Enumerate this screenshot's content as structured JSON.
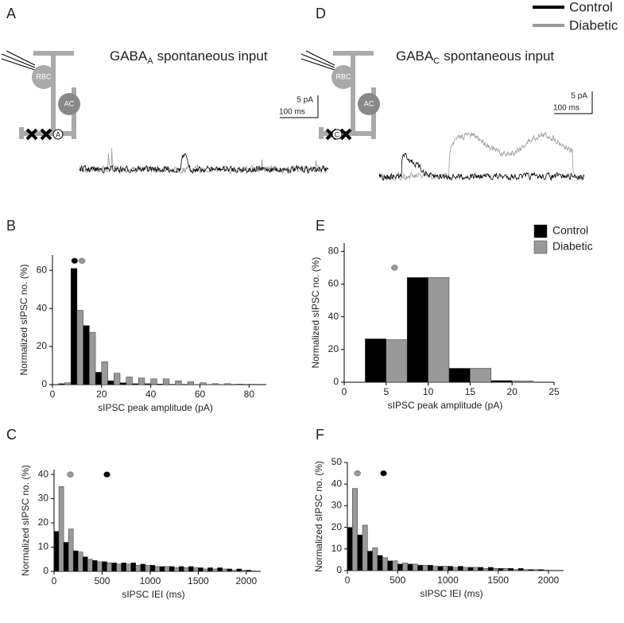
{
  "panel_letters": [
    "A",
    "B",
    "C",
    "D",
    "E",
    "F"
  ],
  "trace_panels": [
    {
      "title_main": "GABA",
      "title_sub": "A",
      "title_rest": "spontaneous input",
      "scale_current": "5 pA",
      "scale_time": "100 ms",
      "cell_labels": [
        "RBC",
        "AC"
      ],
      "receptor": "A"
    },
    {
      "title_main": "GABA",
      "title_sub": "C",
      "title_rest": "spontaneous input",
      "scale_current": "5 pA",
      "scale_time": "100 ms",
      "cell_labels": [
        "RBC",
        "AC"
      ],
      "receptor": "C"
    }
  ],
  "chart_data": [
    {
      "type": "bar",
      "xlabel": "sIPSC peak amplitude (pA)",
      "ylabel": "Normalized sIPSC no. (%)",
      "x": [
        5,
        10,
        15,
        20,
        25,
        30,
        35,
        40,
        45,
        50,
        55,
        60,
        65,
        70,
        75,
        80
      ],
      "series": [
        {
          "name": "Control",
          "color": "#000000",
          "values": [
            0.5,
            61,
            31,
            6.5,
            2,
            1,
            0.5,
            0.5,
            0.3,
            0.2,
            0.2,
            0.1,
            0.1,
            0.1,
            0,
            0
          ]
        },
        {
          "name": "Diabetic",
          "color": "#999999",
          "values": [
            1,
            39,
            27.5,
            12,
            6,
            4,
            3.5,
            3,
            3,
            2,
            1.5,
            1,
            0.5,
            0.5,
            0.3,
            0.2
          ]
        }
      ],
      "markers": [
        {
          "x": 9,
          "y": 65,
          "color": "#000000"
        },
        {
          "x": 12,
          "y": 65,
          "color": "#999999"
        }
      ],
      "xlim": [
        0,
        87
      ],
      "ylim": [
        0,
        68
      ],
      "xticks": [
        0,
        20,
        40,
        60,
        80
      ],
      "yticks": [
        0,
        20,
        40,
        60
      ]
    },
    {
      "type": "bar",
      "xlabel": "sIPSC peak amplitude (pA)",
      "ylabel": "Normalized sIPSC no. (%)",
      "x": [
        5,
        10,
        15,
        20
      ],
      "series": [
        {
          "name": "Control",
          "color": "#000000",
          "values": [
            26.5,
            64,
            8.5,
            1
          ]
        },
        {
          "name": "Diabetic",
          "color": "#999999",
          "values": [
            26,
            64,
            8.5,
            0.8
          ]
        }
      ],
      "markers": [
        {
          "x": 6,
          "y": 70,
          "color": "#999999"
        }
      ],
      "legend": "upper right",
      "xlim": [
        0,
        25
      ],
      "ylim": [
        0,
        85
      ],
      "xticks": [
        0,
        5,
        10,
        15,
        20,
        25
      ],
      "yticks": [
        0,
        20,
        40,
        60,
        80
      ]
    },
    {
      "type": "bar",
      "xlabel": "sIPSC IEI (ms)",
      "ylabel": "Normalized sIPSC no. (%)",
      "x": [
        50,
        150,
        250,
        350,
        450,
        550,
        650,
        750,
        850,
        950,
        1050,
        1150,
        1250,
        1350,
        1450,
        1550,
        1650,
        1750,
        1850,
        1950,
        2050
      ],
      "series": [
        {
          "name": "Control",
          "color": "#000000",
          "values": [
            16.5,
            12,
            8.5,
            6,
            4.5,
            4,
            3.5,
            3.5,
            3.5,
            3,
            2.5,
            2,
            2,
            2,
            2,
            1.5,
            1.5,
            1.5,
            1,
            1,
            0.5
          ]
        },
        {
          "name": "Diabetic",
          "color": "#999999",
          "values": [
            35,
            17.5,
            8,
            5,
            4,
            3.5,
            3,
            3,
            2.5,
            2.5,
            2,
            2,
            1.5,
            1.5,
            1.5,
            1,
            1,
            1,
            0.5,
            0.5,
            0.2
          ]
        }
      ],
      "markers": [
        {
          "x": 170,
          "y": 40,
          "color": "#999999"
        },
        {
          "x": 550,
          "y": 40,
          "color": "#000000"
        }
      ],
      "xlim": [
        0,
        2150
      ],
      "ylim": [
        0,
        42
      ],
      "xticks": [
        0,
        500,
        1000,
        1500,
        2000
      ],
      "yticks": [
        0,
        10,
        20,
        30,
        40
      ]
    },
    {
      "type": "bar",
      "xlabel": "sIPSC IEI (ms)",
      "ylabel": "Normalized sIPSC no. (%)",
      "x": [
        50,
        150,
        250,
        350,
        450,
        550,
        650,
        750,
        850,
        950,
        1050,
        1150,
        1250,
        1350,
        1450,
        1550,
        1650,
        1750,
        1850,
        1950
      ],
      "series": [
        {
          "name": "Control",
          "color": "#000000",
          "values": [
            20,
            16.5,
            9,
            7,
            4.5,
            3,
            3,
            2.5,
            2.5,
            2,
            2,
            2,
            1.5,
            1.5,
            1.5,
            1,
            1,
            1,
            0.5,
            0.5
          ]
        },
        {
          "name": "Diabetic",
          "color": "#999999",
          "values": [
            38,
            21,
            10.5,
            6,
            4.5,
            3.5,
            3,
            2.5,
            2,
            2,
            1.5,
            1.5,
            1.5,
            1,
            1,
            1,
            0.5,
            0.5,
            0.5,
            0.3
          ]
        }
      ],
      "markers": [
        {
          "x": 100,
          "y": 45,
          "color": "#999999"
        },
        {
          "x": 360,
          "y": 45,
          "color": "#000000"
        }
      ],
      "xlim": [
        0,
        2150
      ],
      "ylim": [
        0,
        50
      ],
      "xticks": [
        0,
        500,
        1000,
        1500,
        2000
      ],
      "yticks": [
        0,
        10,
        20,
        30,
        40,
        50
      ]
    }
  ]
}
